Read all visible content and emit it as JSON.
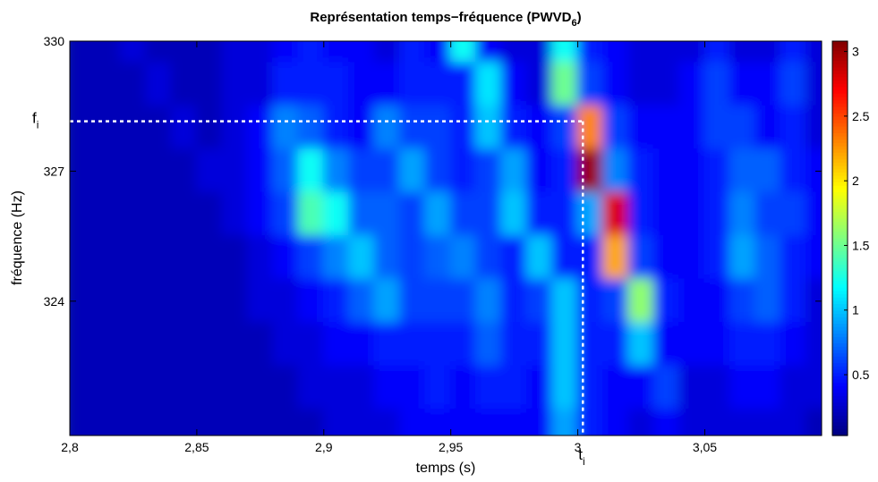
{
  "chart_data": {
    "type": "heatmap",
    "title": {
      "text": "Représentation temps−fréquence (PWVD",
      "subscript": "6",
      "suffix": ")"
    },
    "xlabel": "temps (s)",
    "ylabel": "fréquence (Hz)",
    "xlim": [
      2.8,
      3.096
    ],
    "ylim": [
      320.9,
      330
    ],
    "zlim": [
      0.03,
      3.08
    ],
    "xticks": [
      {
        "value": 2.8,
        "label": "2,8"
      },
      {
        "value": 2.85,
        "label": "2,85"
      },
      {
        "value": 2.9,
        "label": "2,9"
      },
      {
        "value": 2.95,
        "label": "2,95"
      },
      3,
      {
        "value": 3.05,
        "label": "3,05"
      }
    ],
    "yticks": [
      324,
      327,
      330
    ],
    "colorbar_ticks": [
      0.5,
      1,
      1.5,
      2,
      2.5,
      3
    ],
    "colormap": "jet",
    "x": [
      2.805,
      2.815,
      2.825,
      2.835,
      2.845,
      2.855,
      2.865,
      2.875,
      2.885,
      2.895,
      2.905,
      2.915,
      2.925,
      2.935,
      2.945,
      2.955,
      2.965,
      2.975,
      2.985,
      2.995,
      3.005,
      3.015,
      3.025,
      3.035,
      3.045,
      3.055,
      3.065,
      3.075,
      3.085,
      3.095
    ],
    "y": [
      330,
      329,
      328,
      327,
      326,
      325,
      324,
      323,
      322,
      321
    ],
    "z": [
      [
        0.2,
        0.2,
        0.3,
        0.2,
        0.2,
        0.2,
        0.3,
        0.3,
        0.4,
        0.5,
        0.4,
        0.4,
        0.3,
        0.5,
        0.4,
        1.2,
        0.4,
        0.3,
        0.3,
        1.2,
        0.5,
        0.4,
        0.3,
        0.3,
        0.3,
        0.5,
        0.3,
        0.3,
        0.5,
        0.3
      ],
      [
        0.2,
        0.2,
        0.2,
        0.3,
        0.2,
        0.2,
        0.3,
        0.3,
        0.5,
        0.5,
        0.5,
        0.4,
        0.4,
        0.5,
        0.5,
        0.5,
        1.1,
        0.4,
        0.3,
        1.5,
        0.6,
        0.4,
        0.3,
        0.3,
        0.4,
        0.6,
        0.4,
        0.4,
        0.6,
        0.3
      ],
      [
        0.2,
        0.2,
        0.2,
        0.2,
        0.3,
        0.2,
        0.3,
        0.4,
        0.8,
        0.7,
        0.5,
        0.4,
        0.8,
        0.6,
        0.6,
        0.5,
        1.0,
        0.5,
        0.4,
        0.6,
        2.3,
        0.6,
        0.4,
        0.4,
        0.4,
        0.6,
        0.6,
        0.4,
        0.5,
        0.3
      ],
      [
        0.2,
        0.2,
        0.2,
        0.2,
        0.2,
        0.3,
        0.3,
        0.4,
        0.7,
        1.2,
        0.8,
        0.6,
        0.6,
        0.9,
        0.6,
        0.5,
        0.6,
        0.9,
        0.4,
        0.5,
        3.0,
        0.8,
        0.5,
        0.4,
        0.4,
        0.5,
        0.7,
        0.7,
        0.5,
        0.4
      ],
      [
        0.2,
        0.2,
        0.2,
        0.2,
        0.2,
        0.2,
        0.3,
        0.4,
        0.6,
        1.4,
        1.2,
        0.7,
        0.7,
        0.6,
        0.9,
        0.6,
        0.6,
        1.0,
        0.5,
        0.5,
        0.9,
        2.8,
        0.5,
        0.4,
        0.4,
        0.5,
        0.8,
        0.6,
        0.6,
        0.4
      ],
      [
        0.2,
        0.2,
        0.2,
        0.2,
        0.2,
        0.2,
        0.2,
        0.3,
        0.4,
        0.6,
        0.8,
        1.0,
        0.7,
        0.6,
        0.7,
        0.8,
        0.6,
        0.5,
        1.0,
        0.5,
        0.5,
        2.2,
        0.6,
        0.4,
        0.4,
        0.5,
        0.9,
        0.7,
        0.5,
        0.4
      ],
      [
        0.2,
        0.2,
        0.2,
        0.2,
        0.2,
        0.2,
        0.2,
        0.3,
        0.3,
        0.4,
        0.5,
        0.7,
        0.9,
        0.6,
        0.6,
        0.6,
        0.8,
        0.5,
        0.6,
        1.0,
        0.5,
        0.6,
        1.6,
        0.5,
        0.4,
        0.4,
        0.6,
        0.7,
        0.5,
        0.3
      ],
      [
        0.2,
        0.2,
        0.2,
        0.2,
        0.2,
        0.2,
        0.2,
        0.2,
        0.3,
        0.3,
        0.4,
        0.4,
        0.5,
        0.5,
        0.5,
        0.5,
        0.7,
        0.5,
        0.5,
        1.0,
        0.5,
        0.5,
        1.0,
        0.4,
        0.4,
        0.4,
        0.5,
        0.5,
        0.4,
        0.3
      ],
      [
        0.2,
        0.2,
        0.2,
        0.2,
        0.2,
        0.2,
        0.2,
        0.2,
        0.2,
        0.3,
        0.3,
        0.3,
        0.4,
        0.4,
        0.5,
        0.4,
        0.5,
        0.5,
        0.4,
        1.0,
        0.5,
        0.4,
        0.4,
        0.6,
        0.3,
        0.3,
        0.4,
        0.4,
        0.3,
        0.3
      ],
      [
        0.2,
        0.2,
        0.2,
        0.2,
        0.2,
        0.2,
        0.2,
        0.2,
        0.2,
        0.2,
        0.3,
        0.3,
        0.3,
        0.4,
        0.4,
        0.4,
        0.4,
        0.4,
        0.4,
        0.9,
        0.5,
        0.4,
        0.3,
        0.4,
        0.3,
        0.3,
        0.3,
        0.3,
        0.3,
        0.2
      ]
    ],
    "annotations": {
      "f_i": {
        "label": "f",
        "subscript": "i",
        "value": 328.15
      },
      "t_i": {
        "label": "t",
        "subscript": "i",
        "value": 3.002
      }
    }
  }
}
